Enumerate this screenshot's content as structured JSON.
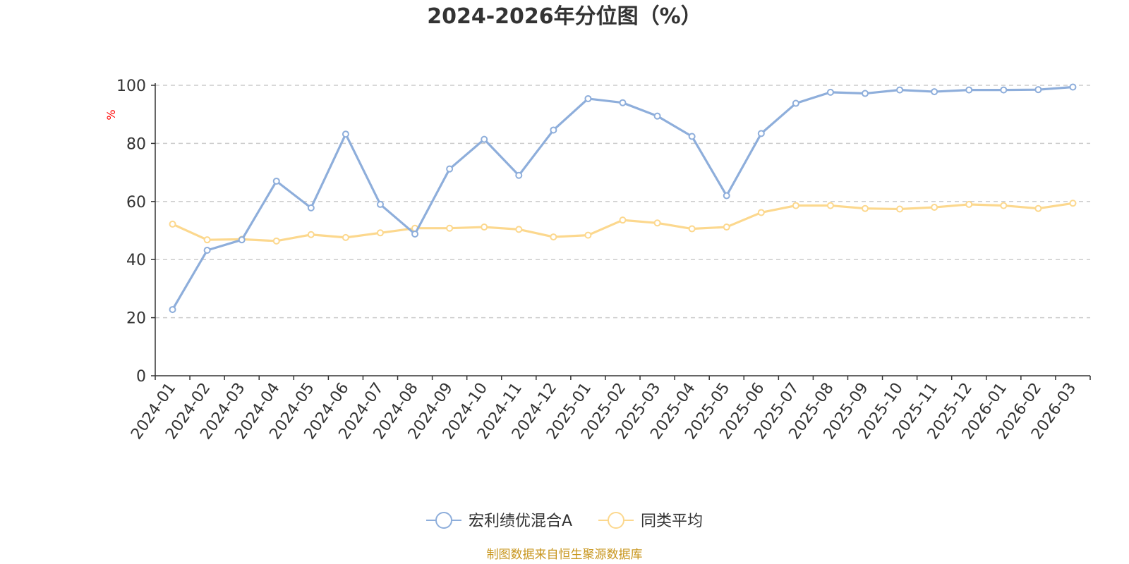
{
  "chart_data": {
    "type": "line",
    "title": "2024-2026年分位图（%）",
    "ylabel": "%",
    "xlabel": "",
    "ylim": [
      0,
      100
    ],
    "yticks": [
      0,
      20,
      40,
      60,
      80,
      100
    ],
    "grid": true,
    "legend_position": "bottom",
    "categories": [
      "2024-01",
      "2024-02",
      "2024-03",
      "2024-04",
      "2024-05",
      "2024-06",
      "2024-07",
      "2024-08",
      "2024-09",
      "2024-10",
      "2024-11",
      "2024-12",
      "2025-01",
      "2025-02",
      "2025-03",
      "2025-04",
      "2025-05",
      "2025-06",
      "2025-07",
      "2025-08",
      "2025-09",
      "2025-10",
      "2025-11",
      "2025-12",
      "2026-01",
      "2026-02",
      "2026-03"
    ],
    "series": [
      {
        "name": "宏利绩优混合A",
        "color": "#8eaedb",
        "values": [
          22.8,
          43.2,
          46.8,
          67.0,
          57.8,
          83.2,
          59.0,
          48.8,
          71.2,
          81.4,
          69.0,
          84.6,
          95.4,
          94.0,
          89.4,
          82.4,
          62.0,
          83.4,
          93.8,
          97.6,
          97.2,
          98.4,
          97.8,
          98.4,
          98.4,
          98.5,
          99.4
        ]
      },
      {
        "name": "同类平均",
        "color": "#fcd88e",
        "values": [
          52.2,
          46.8,
          47.0,
          46.4,
          48.6,
          47.6,
          49.2,
          50.8,
          50.8,
          51.2,
          50.4,
          47.8,
          48.4,
          53.6,
          52.6,
          50.6,
          51.2,
          56.2,
          58.6,
          58.6,
          57.6,
          57.4,
          58.0,
          59.0,
          58.6,
          57.6,
          59.4
        ]
      }
    ]
  },
  "source_text": "制图数据来自恒生聚源数据库",
  "colors": {
    "title": "#333333",
    "axis": "#333333",
    "grid": "#cccccc",
    "ylabel": "#ff0000",
    "source": "#c8961e"
  }
}
